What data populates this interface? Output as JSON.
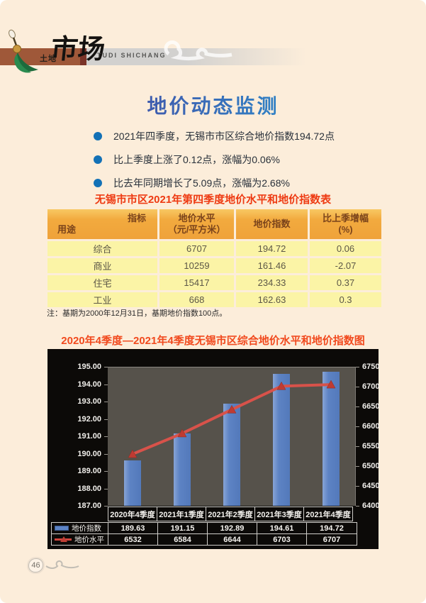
{
  "header": {
    "logo_cn_small": "土地",
    "logo_cn_large": "市场",
    "logo_en": "TUDI SHICHANG"
  },
  "title": "地价动态监测",
  "bullets": [
    "2021年四季度，无锡市市区综合地价指数194.72点",
    "比上季度上涨了0.12点，涨幅为0.06%",
    "比去年同期增长了5.09点，涨幅为2.68%"
  ],
  "price_table": {
    "title": "无锡市市区2021年第四季度地价水平和地价指数表",
    "corner": {
      "top": "指标",
      "bottom": "用途"
    },
    "columns": [
      {
        "l1": "地价水平",
        "l2": "（元/平方米）"
      },
      {
        "l1": "地价指数",
        "l2": ""
      },
      {
        "l1": "比上季增幅",
        "l2": "(%)"
      }
    ],
    "rows": [
      {
        "use": "综合",
        "price": "6707",
        "index": "194.72",
        "change": "0.06"
      },
      {
        "use": "商业",
        "price": "10259",
        "index": "161.46",
        "change": "-2.07"
      },
      {
        "use": "住宅",
        "price": "15417",
        "index": "234.33",
        "change": "0.37"
      },
      {
        "use": "工业",
        "price": "668",
        "index": "162.63",
        "change": "0.3"
      }
    ]
  },
  "note": "注：基期为2000年12月31日，基期地价指数100点。",
  "chart": {
    "title": "2020年4季度—2021年4季度无锡市区综合地价水平和地价指数图"
  },
  "chart_data": {
    "type": "bar+line combo",
    "categories": [
      "2020年4季度",
      "2021年1季度",
      "2021年2季度",
      "2021年3季度",
      "2021年4季度"
    ],
    "series": [
      {
        "name": "地价指数",
        "type": "bar",
        "axis": "left",
        "values": [
          "189.63",
          "191.15",
          "192.89",
          "194.61",
          "194.72"
        ]
      },
      {
        "name": "地价水平",
        "type": "line",
        "axis": "right",
        "values": [
          "6532",
          "6584",
          "6644",
          "6703",
          "6707"
        ]
      }
    ],
    "left_axis": {
      "min": 187,
      "max": 195,
      "step": 1,
      "ticks": [
        "195.00",
        "194.00",
        "193.00",
        "192.00",
        "191.00",
        "190.00",
        "189.00",
        "188.00",
        "187.00"
      ]
    },
    "right_axis": {
      "min": 6400,
      "max": 6750,
      "step": 50,
      "ticks": [
        "6750",
        "6700",
        "6650",
        "6600",
        "6550",
        "6500",
        "6450",
        "6400"
      ]
    },
    "colors": {
      "bar": "#5d83c4",
      "line": "#d8524a",
      "marker": "#bf3b32",
      "plot_bg": "#56524b",
      "chart_bg": "#0c0a08"
    },
    "grid": false,
    "legend_position": "bottom-table"
  },
  "page": {
    "number": "46"
  }
}
